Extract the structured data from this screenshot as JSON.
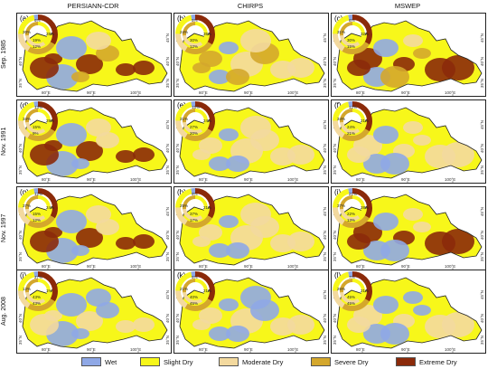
{
  "columns": [
    "PERSIANN-CDR",
    "CHIRPS",
    "MSWEP"
  ],
  "rows": [
    "Sep. 1985",
    "Nov. 1991",
    "Nov. 1997",
    "Aug. 2008"
  ],
  "panel_labels": [
    "(a)",
    "(b)",
    "(c)",
    "(d)",
    "(e)",
    "(f)",
    "(g)",
    "(h)",
    "(i)",
    "(j)",
    "(k)",
    "(l)"
  ],
  "lon_ticks": [
    "80°E",
    "90°E",
    "100°E"
  ],
  "lat_ticks": [
    "45°N",
    "40°N",
    "35°N"
  ],
  "legend": [
    {
      "label": "Wet",
      "color": "#8fa8e6"
    },
    {
      "label": "Slight Dry",
      "color": "#f7f71a"
    },
    {
      "label": "Moderate Dry",
      "color": "#f3d99e"
    },
    {
      "label": "Severe Dry",
      "color": "#d4a72c"
    },
    {
      "label": "Extreme Dry",
      "color": "#8b2a0a"
    }
  ],
  "donuts": [
    {
      "inner": [
        "30%",
        "19%",
        "12%"
      ],
      "outer": [
        "6%",
        "28%"
      ]
    },
    {
      "inner": [
        "24%",
        "30%",
        "12%"
      ],
      "outer": [
        "5%",
        "35%"
      ]
    },
    {
      "inner": [
        "31%",
        "30%",
        "15%"
      ],
      "outer": [
        "6%",
        "32%"
      ]
    },
    {
      "inner": [
        "34%",
        "15%",
        "9%"
      ],
      "outer": [
        "13%",
        "29%"
      ]
    },
    {
      "inner": [
        "31%",
        "27%",
        "20%"
      ],
      "outer": [
        "15%",
        "24%"
      ]
    },
    {
      "inner": [
        "34%",
        "24%",
        "21%"
      ],
      "outer": [
        "12%",
        "21%"
      ]
    },
    {
      "inner": [
        "37%",
        "15%",
        "12%"
      ],
      "outer": [
        "12%",
        "24%"
      ]
    },
    {
      "inner": [
        "25%",
        "37%",
        "17%"
      ],
      "outer": [
        "9%",
        "21%"
      ]
    },
    {
      "inner": [
        "37%",
        "22%",
        "13%"
      ],
      "outer": [
        "21%",
        "28%"
      ]
    },
    {
      "inner": [
        "12%",
        "43%",
        "43%"
      ],
      "outer": [
        "27%",
        "1%"
      ]
    },
    {
      "inner": [
        "21%",
        "40%",
        "45%"
      ],
      "outer": [
        "5%",
        "21%"
      ]
    },
    {
      "inner": [
        "26%",
        "45%",
        "45%"
      ],
      "outer": [
        "7%",
        "21%"
      ]
    }
  ]
}
